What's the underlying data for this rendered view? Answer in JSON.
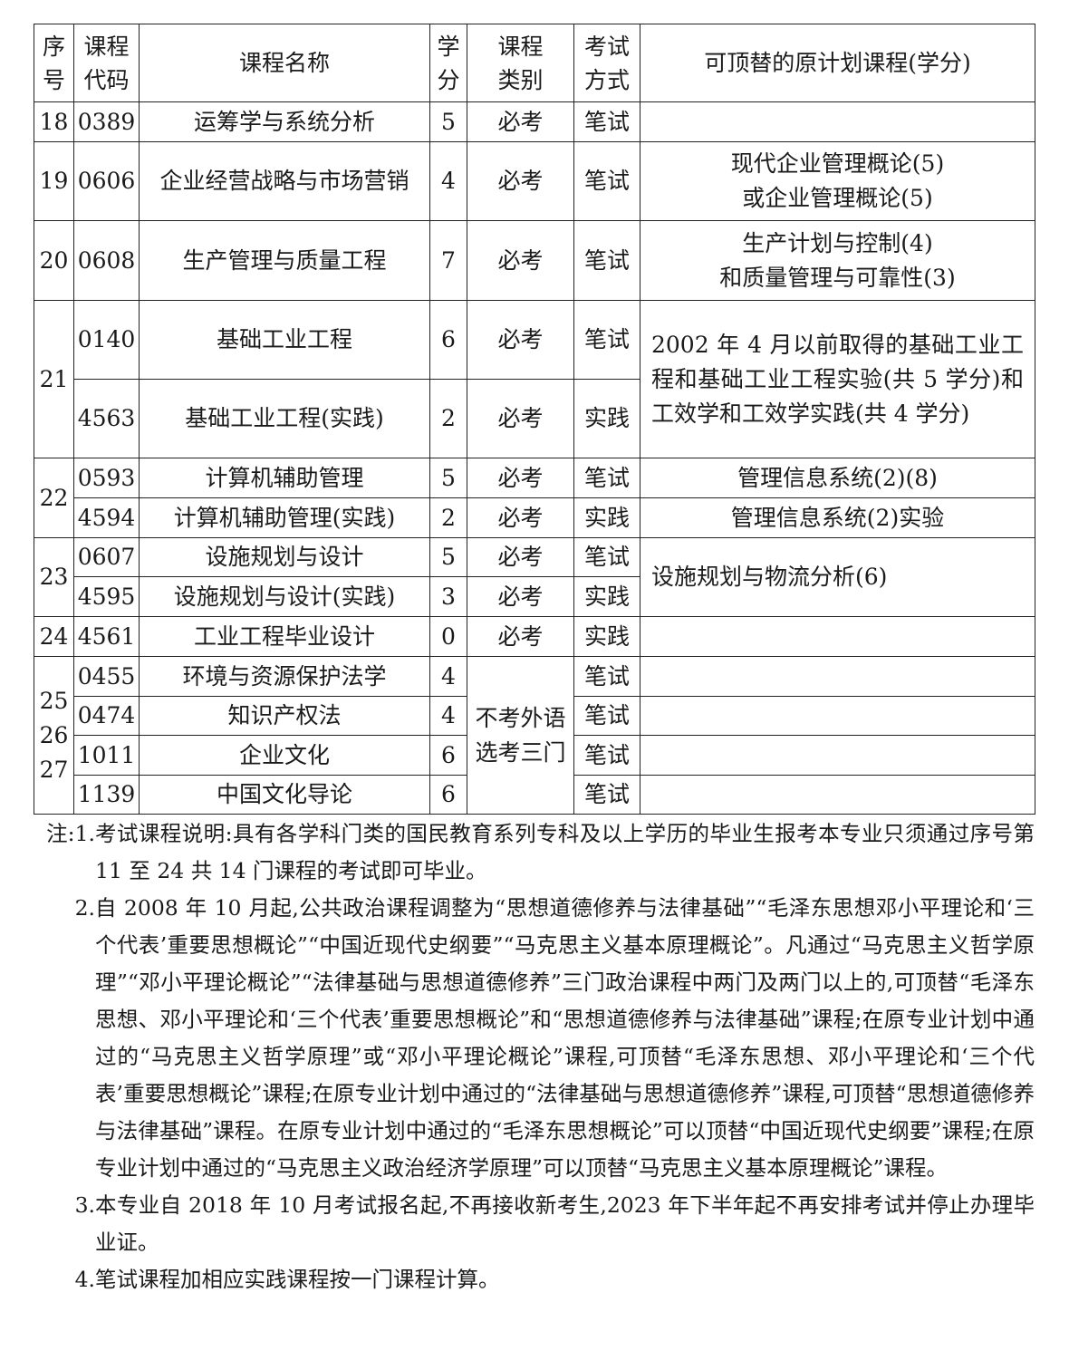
{
  "table": {
    "headers": [
      "序\n号",
      "课程\n代码",
      "课程名称",
      "学\n分",
      "课程\n类别",
      "考试\n方式",
      "可顶替的原计划课程(学分)"
    ],
    "rows": [
      {
        "seq": "18",
        "code": "0389",
        "name": "运筹学与系统分析",
        "credit": "5",
        "type": "必考",
        "exam": "笔试",
        "replace": ""
      },
      {
        "seq": "19",
        "code": "0606",
        "name": "企业经营战略与市场营销",
        "credit": "4",
        "type": "必考",
        "exam": "笔试",
        "replace": "现代企业管理概论(5)\n或企业管理概论(5)"
      },
      {
        "seq": "20",
        "code": "0608",
        "name": "生产管理与质量工程",
        "credit": "7",
        "type": "必考",
        "exam": "笔试",
        "replace": "生产计划与控制(4)\n和质量管理与可靠性(3)"
      },
      {
        "seq": "21",
        "code": "0140",
        "name": "基础工业工程",
        "credit": "6",
        "type": "必考",
        "exam": "笔试",
        "replace": "2002 年 4 月以前取得的基础工业工程和基础工业工程实验(共 5 学分)和工效学和工效学实践(共 4 学分)"
      },
      {
        "seq": "",
        "code": "4563",
        "name": "基础工业工程(实践)",
        "credit": "2",
        "type": "必考",
        "exam": "实践",
        "replace": ""
      },
      {
        "seq": "22",
        "code": "0593",
        "name": "计算机辅助管理",
        "credit": "5",
        "type": "必考",
        "exam": "笔试",
        "replace": "管理信息系统(2)(8)"
      },
      {
        "seq": "",
        "code": "4594",
        "name": "计算机辅助管理(实践)",
        "credit": "2",
        "type": "必考",
        "exam": "实践",
        "replace": "管理信息系统(2)实验"
      },
      {
        "seq": "23",
        "code": "0607",
        "name": "设施规划与设计",
        "credit": "5",
        "type": "必考",
        "exam": "笔试",
        "replace": "设施规划与物流分析(6)"
      },
      {
        "seq": "",
        "code": "4595",
        "name": "设施规划与设计(实践)",
        "credit": "3",
        "type": "必考",
        "exam": "实践",
        "replace": ""
      },
      {
        "seq": "24",
        "code": "4561",
        "name": "工业工程毕业设计",
        "credit": "0",
        "type": "必考",
        "exam": "实践",
        "replace": ""
      },
      {
        "seq": "25\n26\n27",
        "code": "0455",
        "name": "环境与资源保护法学",
        "credit": "4",
        "type": "不考外语\n选考三门",
        "exam": "笔试",
        "replace": ""
      },
      {
        "seq": "",
        "code": "0474",
        "name": "知识产权法",
        "credit": "4",
        "type": "",
        "exam": "笔试",
        "replace": ""
      },
      {
        "seq": "",
        "code": "1011",
        "name": "企业文化",
        "credit": "6",
        "type": "",
        "exam": "笔试",
        "replace": ""
      },
      {
        "seq": "",
        "code": "1139",
        "name": "中国文化导论",
        "credit": "6",
        "type": "",
        "exam": "笔试",
        "replace": ""
      }
    ]
  },
  "notes": {
    "prefix": "注:",
    "items": [
      {
        "num": "1.",
        "text": "考试课程说明:具有各学科门类的国民教育系列专科及以上学历的毕业生报考本专业只须通过序号第 11 至 24 共 14 门课程的考试即可毕业。"
      },
      {
        "num": "2.",
        "text": "自 2008 年 10 月起,公共政治课程调整为“思想道德修养与法律基础”“毛泽东思想邓小平理论和‘三个代表’重要思想概论”“中国近现代史纲要”“马克思主义基本原理概论”。凡通过“马克思主义哲学原理”“邓小平理论概论”“法律基础与思想道德修养”三门政治课程中两门及两门以上的,可顶替“毛泽东思想、邓小平理论和‘三个代表’重要思想概论”和“思想道德修养与法律基础”课程;在原专业计划中通过的“马克思主义哲学原理”或“邓小平理论概论”课程,可顶替“毛泽东思想、邓小平理论和‘三个代表’重要思想概论”课程;在原专业计划中通过的“法律基础与思想道德修养”课程,可顶替“思想道德修养与法律基础”课程。在原专业计划中通过的“毛泽东思想概论”可以顶替“中国近现代史纲要”课程;在原专业计划中通过的“马克思主义政治经济学原理”可以顶替“马克思主义基本原理概论”课程。"
      },
      {
        "num": "3.",
        "text": "本专业自 2018 年 10 月考试报名起,不再接收新考生,2023 年下半年起不再安排考试并停止办理毕业证。"
      },
      {
        "num": "4.",
        "text": "笔试课程加相应实践课程按一门课程计算。"
      }
    ]
  }
}
